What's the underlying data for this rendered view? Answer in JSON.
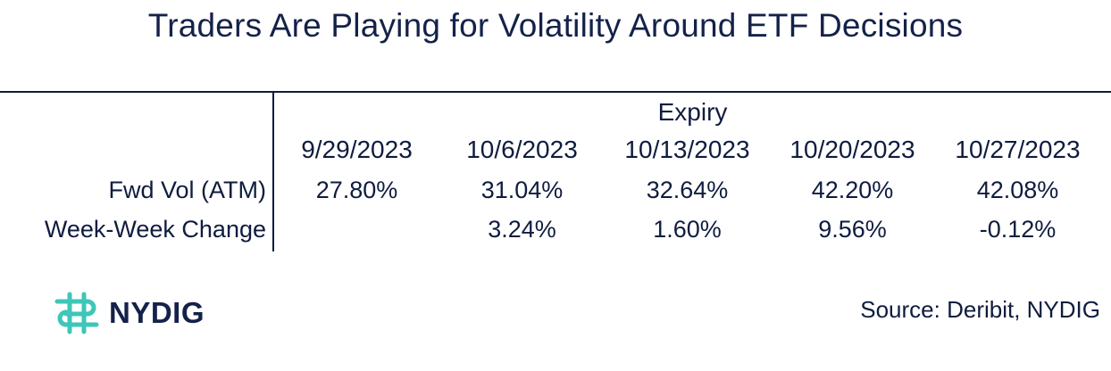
{
  "chart_data": {
    "type": "table",
    "title": "Traders Are Playing for Volatility Around ETF Decisions",
    "column_group": "Expiry",
    "columns": [
      "9/29/2023",
      "10/6/2023",
      "10/13/2023",
      "10/20/2023",
      "10/27/2023"
    ],
    "rows": [
      {
        "label": "Fwd Vol (ATM)",
        "values": [
          "27.80%",
          "31.04%",
          "32.64%",
          "42.20%",
          "42.08%"
        ]
      },
      {
        "label": "Week-Week Change",
        "values": [
          "",
          "3.24%",
          "1.60%",
          "9.56%",
          "-0.12%"
        ]
      }
    ]
  },
  "footer": {
    "brand": "NYDIG",
    "brand_icon": "nydig-logo-icon",
    "brand_color": "#3ec6b8",
    "source": "Source: Deribit, NYDIG"
  }
}
